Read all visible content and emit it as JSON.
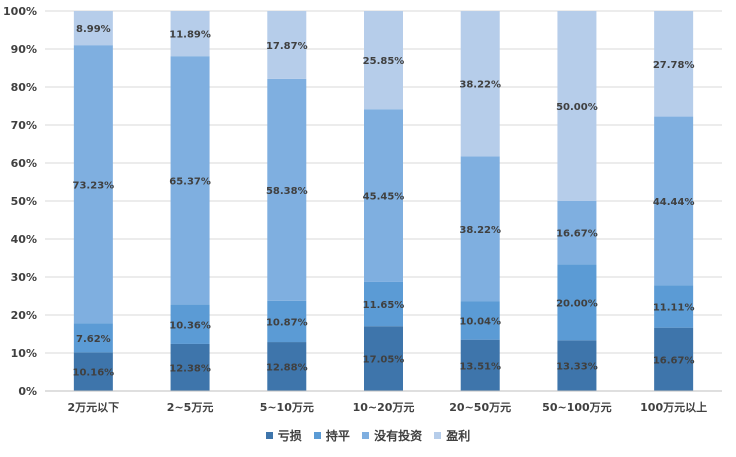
{
  "chart_data": {
    "type": "bar",
    "stacked": "percent",
    "categories": [
      "2万元以下",
      "2~5万元",
      "5~10万元",
      "10~20万元",
      "20~50万元",
      "50~100万元",
      "100万元以上"
    ],
    "series": [
      {
        "name": "亏损",
        "color": "#3E75AB",
        "values": [
          10.16,
          12.38,
          12.88,
          17.05,
          13.51,
          13.33,
          16.67
        ],
        "labels": [
          "10.16%",
          "12.38%",
          "12.88%",
          "17.05%",
          "13.51%",
          "13.33%",
          "16.67%"
        ]
      },
      {
        "name": "持平",
        "color": "#5B9BD5",
        "values": [
          7.62,
          10.36,
          10.87,
          11.65,
          10.04,
          20.0,
          11.11
        ],
        "labels": [
          "7.62%",
          "10.36%",
          "10.87%",
          "11.65%",
          "10.04%",
          "20.00%",
          "11.11%"
        ]
      },
      {
        "name": "没有投资",
        "color": "#7FAFE0",
        "values": [
          73.23,
          65.37,
          58.38,
          45.45,
          38.22,
          16.67,
          44.44
        ],
        "labels": [
          "73.23%",
          "65.37%",
          "58.38%",
          "45.45%",
          "38.22%",
          "16.67%",
          "44.44%"
        ]
      },
      {
        "name": "盈利",
        "color": "#B6CDEA",
        "values": [
          8.99,
          11.89,
          17.87,
          25.85,
          38.22,
          50.0,
          27.78
        ],
        "labels": [
          "8.99%",
          "11.89%",
          "17.87%",
          "25.85%",
          "38.22%",
          "50.00%",
          "27.78%"
        ]
      }
    ],
    "ylim": [
      0,
      100
    ],
    "yticks": [
      "0%",
      "10%",
      "20%",
      "30%",
      "40%",
      "50%",
      "60%",
      "70%",
      "80%",
      "90%",
      "100%"
    ],
    "grid": true,
    "legend": "bottom",
    "title": "",
    "xlabel": "",
    "ylabel": ""
  }
}
